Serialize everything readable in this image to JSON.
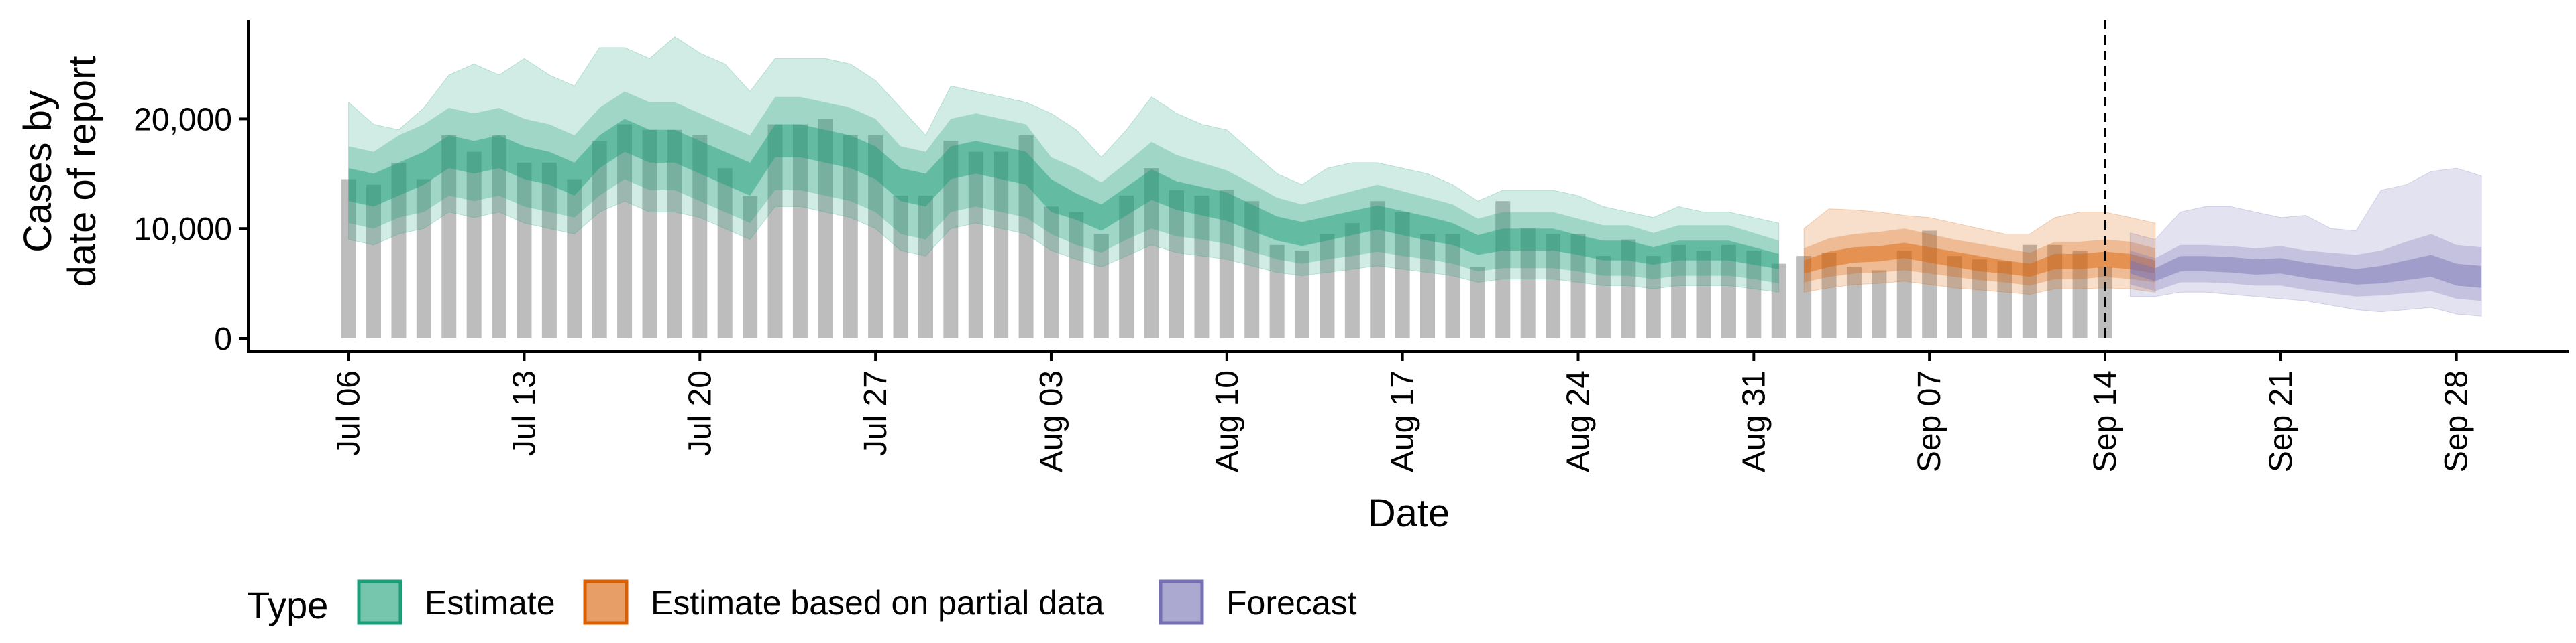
{
  "chart_data": {
    "type": "bar",
    "title": "",
    "xlabel": "Date",
    "ylabel_lines": [
      "Cases by",
      "date of report"
    ],
    "ylim": [
      0,
      29000
    ],
    "yticks": [
      0,
      10000,
      20000
    ],
    "ytick_labels": [
      "0",
      "10,000",
      "20,000"
    ],
    "xtick_labels": [
      "Jul 06",
      "Jul 13",
      "Jul 20",
      "Jul 27",
      "Aug 03",
      "Aug 10",
      "Aug 17",
      "Aug 24",
      "Aug 31",
      "Sep 07",
      "Sep 14",
      "Sep 21",
      "Sep 28"
    ],
    "xtick_days": [
      0,
      7,
      14,
      21,
      28,
      35,
      42,
      49,
      56,
      63,
      70,
      77,
      84
    ],
    "x_range_days": [
      -4,
      88.5
    ],
    "vline_day": 70,
    "vline_style": "dashed",
    "grid": false,
    "legend_position": "bottom-left",
    "legend": {
      "title": "Type",
      "items": [
        {
          "label": "Estimate",
          "color": "#1b9e77"
        },
        {
          "label": "Estimate based on partial data",
          "color": "#d95f02"
        },
        {
          "label": "Forecast",
          "color": "#7570b3"
        }
      ]
    },
    "bar_color": "#bdbdbd",
    "reported_cases_start_date": "Jul 06",
    "reported_cases": [
      14500,
      14000,
      16000,
      14500,
      18500,
      17000,
      18500,
      16000,
      16000,
      14500,
      18000,
      19500,
      19000,
      19000,
      18500,
      15500,
      13000,
      19500,
      19500,
      20000,
      18500,
      18500,
      13000,
      13000,
      18000,
      17000,
      17000,
      18500,
      12000,
      11500,
      9500,
      13000,
      15500,
      13500,
      13000,
      13500,
      12500,
      8500,
      8000,
      9500,
      10500,
      12500,
      11500,
      9500,
      9500,
      6500,
      12500,
      10000,
      9500,
      9500,
      7500,
      9000,
      7500,
      8500,
      8000,
      8500,
      8000,
      6800,
      7500,
      7800,
      6500,
      6200,
      8000,
      9800,
      7500,
      7200,
      7000,
      8500,
      8500,
      8000,
      6500
    ],
    "series": [
      {
        "name": "Estimate",
        "color": "#1b9e77",
        "start_day": 0,
        "median": [
          14000,
          13500,
          14500,
          15500,
          17000,
          16500,
          17000,
          16000,
          15500,
          14500,
          17000,
          18500,
          17500,
          17500,
          16500,
          15500,
          14500,
          18000,
          18000,
          17500,
          17000,
          16000,
          14000,
          13500,
          16000,
          16500,
          16000,
          15500,
          13000,
          12000,
          11000,
          12500,
          14000,
          13000,
          12500,
          12000,
          11000,
          10000,
          9500,
          10000,
          10500,
          11000,
          10500,
          10000,
          9500,
          8500,
          9000,
          9000,
          9000,
          8500,
          8000,
          8000,
          7500,
          8000,
          8000,
          8000,
          7500,
          7000
        ],
        "inner_low": [
          12500,
          12000,
          13000,
          14000,
          15500,
          15000,
          15500,
          14500,
          14000,
          13000,
          15500,
          17000,
          16000,
          16000,
          15000,
          14000,
          13000,
          16500,
          16500,
          16000,
          15500,
          14500,
          12500,
          12000,
          14500,
          15000,
          14500,
          14000,
          11500,
          10800,
          9800,
          11200,
          12600,
          11700,
          11200,
          10700,
          9800,
          8900,
          8400,
          8900,
          9400,
          9900,
          9400,
          8900,
          8500,
          7600,
          8000,
          8000,
          8000,
          7600,
          7100,
          7100,
          6700,
          7100,
          7100,
          7100,
          6700,
          6300
        ],
        "inner_high": [
          15500,
          15000,
          16000,
          17000,
          18500,
          18000,
          18500,
          17500,
          17000,
          16000,
          18500,
          20000,
          19000,
          19000,
          18000,
          17000,
          16000,
          19500,
          19500,
          19000,
          18500,
          17500,
          15500,
          15000,
          17500,
          18000,
          17500,
          17000,
          14500,
          13200,
          12200,
          13800,
          15400,
          14300,
          13800,
          13300,
          12200,
          11100,
          10600,
          11100,
          11600,
          12100,
          11600,
          11100,
          10500,
          9400,
          10000,
          10000,
          10000,
          9400,
          8900,
          8900,
          8300,
          8900,
          8900,
          8900,
          8300,
          7700
        ],
        "mid_low": [
          10500,
          10000,
          11000,
          11500,
          13000,
          12500,
          13000,
          12000,
          11500,
          11000,
          13000,
          14500,
          13500,
          13500,
          12500,
          11500,
          10500,
          13500,
          13500,
          13000,
          12500,
          11500,
          9500,
          9000,
          11500,
          12000,
          11500,
          11000,
          9500,
          8500,
          7800,
          9000,
          10000,
          9300,
          9000,
          8600,
          7900,
          7200,
          6800,
          7200,
          7500,
          7900,
          7500,
          7200,
          6800,
          6100,
          6400,
          6400,
          6400,
          6100,
          5700,
          5700,
          5400,
          5700,
          5700,
          5700,
          5400,
          5000
        ],
        "mid_high": [
          17500,
          17000,
          18500,
          19500,
          21000,
          20500,
          21000,
          20000,
          19500,
          18500,
          21000,
          22500,
          21500,
          21500,
          20500,
          19500,
          18500,
          22000,
          22000,
          21500,
          21000,
          20000,
          17500,
          17000,
          20000,
          20500,
          20000,
          19500,
          16500,
          15500,
          14200,
          16000,
          17900,
          16700,
          16000,
          15300,
          14100,
          12800,
          12200,
          12800,
          13400,
          14000,
          13400,
          12800,
          12200,
          10900,
          11500,
          11500,
          11500,
          10900,
          10300,
          10300,
          9600,
          10300,
          10300,
          10300,
          9600,
          8900
        ],
        "outer_low": [
          9000,
          8500,
          9500,
          10000,
          11500,
          11000,
          11500,
          10500,
          10000,
          9500,
          11500,
          12500,
          11500,
          11500,
          11000,
          10000,
          9000,
          12000,
          12000,
          11500,
          11000,
          10000,
          8000,
          7500,
          10000,
          10500,
          10000,
          9500,
          8000,
          7200,
          6500,
          7500,
          8500,
          7800,
          7500,
          7200,
          6600,
          6000,
          5700,
          6000,
          6300,
          6600,
          6300,
          6000,
          5700,
          5100,
          5400,
          5400,
          5400,
          5100,
          4800,
          4800,
          4500,
          4800,
          4800,
          4800,
          4500,
          4200
        ],
        "outer_high": [
          21500,
          19500,
          19000,
          21000,
          24000,
          25000,
          24000,
          25500,
          24000,
          23000,
          26500,
          26500,
          25500,
          27500,
          26000,
          25000,
          22500,
          25500,
          25500,
          25500,
          25000,
          23500,
          21000,
          18500,
          23000,
          22500,
          22000,
          21500,
          20500,
          19000,
          16500,
          19000,
          22000,
          20500,
          19500,
          19000,
          17000,
          15000,
          14000,
          15500,
          16000,
          16000,
          15500,
          15000,
          14000,
          12500,
          13500,
          13500,
          13500,
          13000,
          12000,
          11500,
          11000,
          12000,
          11500,
          11500,
          11000,
          10500
        ]
      },
      {
        "name": "Estimate based on partial data",
        "color": "#d95f02",
        "start_day": 58,
        "median": [
          6500,
          7200,
          7600,
          7700,
          8000,
          7600,
          7200,
          6800,
          6500,
          6200,
          7000,
          7000,
          7200,
          7000,
          6500
        ],
        "inner_low": [
          5900,
          6500,
          6900,
          7000,
          7300,
          6900,
          6500,
          6100,
          5900,
          5600,
          6300,
          6300,
          6500,
          6300,
          5900
        ],
        "inner_high": [
          7100,
          7900,
          8300,
          8400,
          8700,
          8300,
          7900,
          7500,
          7100,
          6800,
          7700,
          7700,
          7900,
          7700,
          7100
        ],
        "mid_low": [
          5100,
          5600,
          5900,
          6000,
          6200,
          5900,
          5600,
          5300,
          5100,
          4800,
          5400,
          5400,
          5600,
          5400,
          5100
        ],
        "mid_high": [
          8200,
          9100,
          9500,
          9700,
          10000,
          9500,
          9000,
          8600,
          8200,
          7800,
          8800,
          8800,
          9000,
          8800,
          8200
        ],
        "outer_low": [
          4200,
          4600,
          4900,
          5000,
          5200,
          4900,
          4600,
          4400,
          4200,
          4000,
          4500,
          4500,
          4600,
          4500,
          4200
        ],
        "outer_high": [
          10000,
          11800,
          11700,
          11500,
          11200,
          11000,
          10500,
          10000,
          9500,
          9500,
          11000,
          11500,
          11500,
          11000,
          10500
        ]
      },
      {
        "name": "Forecast",
        "color": "#7570b3",
        "start_day": 71,
        "median": [
          6500,
          5800,
          6800,
          6800,
          6700,
          6500,
          6600,
          6200,
          5900,
          5600,
          5800,
          6200,
          6600,
          5800,
          5600
        ],
        "inner_low": [
          5900,
          5200,
          6100,
          6100,
          6000,
          5800,
          5900,
          5500,
          5200,
          4900,
          5000,
          5300,
          5600,
          4800,
          4600
        ],
        "inner_high": [
          7100,
          6400,
          7500,
          7500,
          7400,
          7200,
          7300,
          6900,
          6600,
          6300,
          6600,
          7100,
          7600,
          6800,
          6600
        ],
        "mid_low": [
          4900,
          4300,
          5100,
          5100,
          5000,
          4800,
          4800,
          4400,
          4100,
          3800,
          3900,
          4100,
          4300,
          3600,
          3400
        ],
        "mid_high": [
          8000,
          7300,
          8500,
          8500,
          8400,
          8200,
          8400,
          8000,
          7800,
          7600,
          8000,
          8800,
          9500,
          8500,
          8300
        ],
        "outer_low": [
          3800,
          3800,
          4200,
          4200,
          4000,
          3800,
          3600,
          3400,
          3000,
          2600,
          2400,
          2600,
          2800,
          2200,
          2000
        ],
        "outer_high": [
          9600,
          9000,
          11500,
          12000,
          12000,
          11500,
          11000,
          11200,
          10000,
          9800,
          13500,
          14000,
          15200,
          15500,
          14800
        ]
      }
    ]
  }
}
